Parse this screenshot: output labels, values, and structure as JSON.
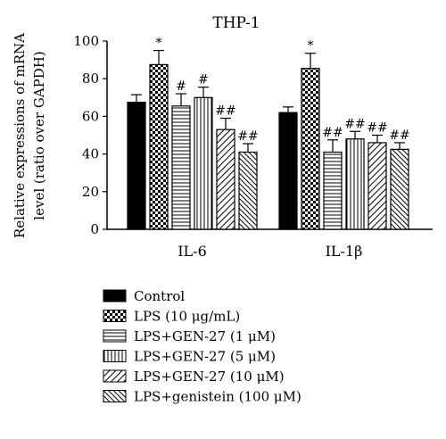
{
  "chart_data": {
    "type": "bar",
    "title": "THP-1",
    "ylabel_line1": "Relative expressions of mRNA",
    "ylabel_line2": "level (ratio over GAPDH)",
    "xlabel": "",
    "ylim": [
      0,
      100
    ],
    "yticks": [
      0,
      20,
      40,
      60,
      80,
      100
    ],
    "categories": [
      "IL-6",
      "IL-1β"
    ],
    "series": [
      {
        "name": "Control",
        "pattern": "solid",
        "values": [
          67.5,
          62.0
        ],
        "errors": [
          4.0,
          3.0
        ],
        "annotations": [
          "",
          ""
        ]
      },
      {
        "name": "LPS (10 μg/mL)",
        "pattern": "checker",
        "values": [
          87.5,
          85.5
        ],
        "errors": [
          7.5,
          8.0
        ],
        "annotations": [
          "*",
          "*"
        ]
      },
      {
        "name": "LPS+GEN-27 (1 μM)",
        "pattern": "hlines",
        "values": [
          65.5,
          41.0
        ],
        "errors": [
          6.5,
          6.5
        ],
        "annotations": [
          "#",
          "##"
        ]
      },
      {
        "name": "LPS+GEN-27 (5 μM)",
        "pattern": "vlines",
        "values": [
          70.0,
          48.0
        ],
        "errors": [
          5.5,
          4.0
        ],
        "annotations": [
          "#",
          "##"
        ]
      },
      {
        "name": "LPS+GEN-27 (10 μM)",
        "pattern": "diag-fwd",
        "values": [
          53.0,
          46.0
        ],
        "errors": [
          6.0,
          4.0
        ],
        "annotations": [
          "##",
          "##"
        ]
      },
      {
        "name": "LPS+genistein (100 μM)",
        "pattern": "diag-back",
        "values": [
          41.0,
          42.5
        ],
        "errors": [
          4.5,
          3.5
        ],
        "annotations": [
          "##",
          "##"
        ]
      }
    ],
    "grid": false,
    "legend_position": "bottom"
  }
}
